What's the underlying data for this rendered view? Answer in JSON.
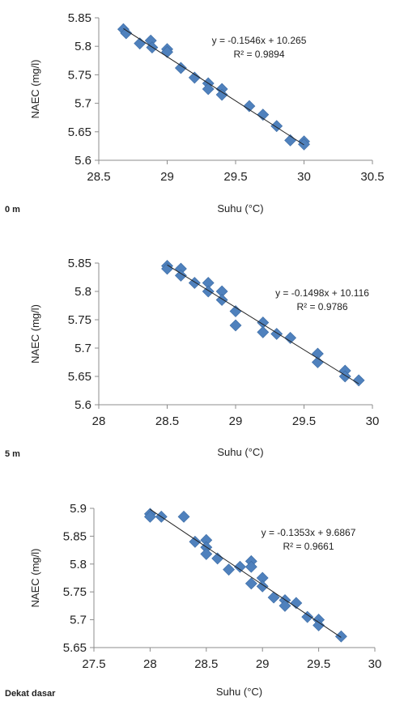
{
  "chart_data": [
    {
      "type": "scatter",
      "panel_label": "0 m",
      "xlabel": "Suhu (°C)",
      "ylabel": "NAEC (mg/l)",
      "xlim": [
        28.5,
        30.5
      ],
      "ylim": [
        5.6,
        5.85
      ],
      "xticks": [
        "28.5",
        "29",
        "29.5",
        "30",
        "30.5"
      ],
      "yticks": [
        "5.6",
        "5.65",
        "5.7",
        "5.75",
        "5.8",
        "5.85"
      ],
      "marker_color": "#4f81bd",
      "trendline": {
        "slope": -0.1546,
        "intercept": 10.265,
        "x_range": [
          28.68,
          30.0
        ]
      },
      "equation": "y = -0.1546x + 10.265",
      "r_squared": "R² = 0.9894",
      "points": [
        {
          "x": 28.68,
          "y": 5.83
        },
        {
          "x": 28.7,
          "y": 5.823
        },
        {
          "x": 28.8,
          "y": 5.805
        },
        {
          "x": 28.88,
          "y": 5.81
        },
        {
          "x": 28.89,
          "y": 5.798
        },
        {
          "x": 29.0,
          "y": 5.795
        },
        {
          "x": 29.0,
          "y": 5.79
        },
        {
          "x": 29.1,
          "y": 5.762
        },
        {
          "x": 29.2,
          "y": 5.745
        },
        {
          "x": 29.3,
          "y": 5.735
        },
        {
          "x": 29.3,
          "y": 5.725
        },
        {
          "x": 29.4,
          "y": 5.725
        },
        {
          "x": 29.4,
          "y": 5.715
        },
        {
          "x": 29.6,
          "y": 5.695
        },
        {
          "x": 29.7,
          "y": 5.68
        },
        {
          "x": 29.8,
          "y": 5.66
        },
        {
          "x": 29.9,
          "y": 5.635
        },
        {
          "x": 30.0,
          "y": 5.633
        },
        {
          "x": 30.0,
          "y": 5.628
        }
      ]
    },
    {
      "type": "scatter",
      "panel_label": "5 m",
      "xlabel": "Suhu (°C)",
      "ylabel": "NAEC (mg/l)",
      "xlim": [
        28,
        30
      ],
      "ylim": [
        5.6,
        5.85
      ],
      "xticks": [
        "28",
        "28.5",
        "29",
        "29.5",
        "30"
      ],
      "yticks": [
        "5.6",
        "5.65",
        "5.7",
        "5.75",
        "5.8",
        "5.85"
      ],
      "marker_color": "#4f81bd",
      "trendline": {
        "slope": -0.1498,
        "intercept": 10.116,
        "x_range": [
          28.5,
          29.9
        ]
      },
      "equation": "y = -0.1498x + 10.116",
      "r_squared": "R² = 0.9786",
      "points": [
        {
          "x": 28.5,
          "y": 5.845
        },
        {
          "x": 28.5,
          "y": 5.84
        },
        {
          "x": 28.6,
          "y": 5.84
        },
        {
          "x": 28.6,
          "y": 5.828
        },
        {
          "x": 28.7,
          "y": 5.815
        },
        {
          "x": 28.8,
          "y": 5.815
        },
        {
          "x": 28.8,
          "y": 5.8
        },
        {
          "x": 28.9,
          "y": 5.8
        },
        {
          "x": 28.9,
          "y": 5.785
        },
        {
          "x": 29.0,
          "y": 5.765
        },
        {
          "x": 29.0,
          "y": 5.74
        },
        {
          "x": 29.2,
          "y": 5.745
        },
        {
          "x": 29.2,
          "y": 5.728
        },
        {
          "x": 29.3,
          "y": 5.725
        },
        {
          "x": 29.4,
          "y": 5.718
        },
        {
          "x": 29.6,
          "y": 5.69
        },
        {
          "x": 29.6,
          "y": 5.675
        },
        {
          "x": 29.8,
          "y": 5.66
        },
        {
          "x": 29.8,
          "y": 5.65
        },
        {
          "x": 29.9,
          "y": 5.643
        }
      ]
    },
    {
      "type": "scatter",
      "panel_label": "Dekat dasar",
      "xlabel": "Suhu (°C)",
      "ylabel": "NAEC (mg/l)",
      "xlim": [
        27.5,
        30
      ],
      "ylim": [
        5.65,
        5.9
      ],
      "xticks": [
        "27.5",
        "28",
        "28.5",
        "29",
        "29.5",
        "30"
      ],
      "yticks": [
        "5.65",
        "5.7",
        "5.75",
        "5.8",
        "5.85",
        "5.9"
      ],
      "marker_color": "#4f81bd",
      "trendline": {
        "slope": -0.1353,
        "intercept": 9.6867,
        "x_range": [
          28.0,
          29.7
        ]
      },
      "equation": "y = -0.1353x + 9.6867",
      "r_squared": "R² = 0.9661",
      "points": [
        {
          "x": 28.0,
          "y": 5.89
        },
        {
          "x": 28.0,
          "y": 5.885
        },
        {
          "x": 28.1,
          "y": 5.885
        },
        {
          "x": 28.3,
          "y": 5.885
        },
        {
          "x": 28.4,
          "y": 5.84
        },
        {
          "x": 28.5,
          "y": 5.843
        },
        {
          "x": 28.5,
          "y": 5.83
        },
        {
          "x": 28.5,
          "y": 5.818
        },
        {
          "x": 28.6,
          "y": 5.81
        },
        {
          "x": 28.7,
          "y": 5.79
        },
        {
          "x": 28.8,
          "y": 5.795
        },
        {
          "x": 28.9,
          "y": 5.805
        },
        {
          "x": 28.9,
          "y": 5.795
        },
        {
          "x": 28.9,
          "y": 5.765
        },
        {
          "x": 29.0,
          "y": 5.775
        },
        {
          "x": 29.0,
          "y": 5.76
        },
        {
          "x": 29.1,
          "y": 5.74
        },
        {
          "x": 29.2,
          "y": 5.735
        },
        {
          "x": 29.2,
          "y": 5.725
        },
        {
          "x": 29.3,
          "y": 5.73
        },
        {
          "x": 29.4,
          "y": 5.705
        },
        {
          "x": 29.5,
          "y": 5.7
        },
        {
          "x": 29.5,
          "y": 5.69
        },
        {
          "x": 29.7,
          "y": 5.67
        }
      ]
    }
  ]
}
